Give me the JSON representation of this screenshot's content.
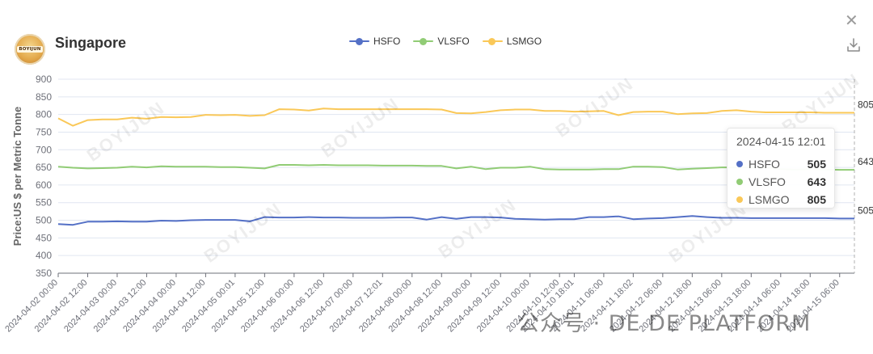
{
  "header": {
    "title": "Singapore",
    "logo_text": "BOYIJUN"
  },
  "watermark_text": "BOYIJUN",
  "footer_watermark": "公众号 · DE DE PLATFORM",
  "tooltip": {
    "date": "2024-04-15 12:01",
    "rows": [
      {
        "name": "HSFO",
        "value": "505",
        "color": "#5470c6"
      },
      {
        "name": "VLSFO",
        "value": "643",
        "color": "#91cc75"
      },
      {
        "name": "LSMGO",
        "value": "805",
        "color": "#fac858"
      }
    ]
  },
  "chart_data": {
    "type": "line",
    "ylabel": "Price:US $ per Metric Tonne",
    "ylim": [
      350,
      900
    ],
    "yticks": [
      350,
      400,
      450,
      500,
      550,
      600,
      650,
      700,
      750,
      800,
      850,
      900
    ],
    "grid": true,
    "legend_position": "top-center",
    "end_labels": [
      "505",
      "643",
      "805"
    ],
    "x": [
      "2024-04-02 00:00",
      "2024-04-02 06:00",
      "2024-04-02 12:00",
      "2024-04-02 18:00",
      "2024-04-03 00:00",
      "2024-04-03 06:00",
      "2024-04-03 12:00",
      "2024-04-03 18:00",
      "2024-04-04 00:00",
      "2024-04-04 06:00",
      "2024-04-04 12:00",
      "2024-04-04 18:00",
      "2024-04-05 00:01",
      "2024-04-05 06:00",
      "2024-04-05 12:00",
      "2024-04-05 18:00",
      "2024-04-06 00:00",
      "2024-04-06 06:00",
      "2024-04-06 12:00",
      "2024-04-06 18:00",
      "2024-04-07 00:00",
      "2024-04-07 06:00",
      "2024-04-07 12:01",
      "2024-04-07 18:00",
      "2024-04-08 00:00",
      "2024-04-08 06:00",
      "2024-04-08 12:00",
      "2024-04-08 18:00",
      "2024-04-09 00:00",
      "2024-04-09 06:00",
      "2024-04-09 12:00",
      "2024-04-09 18:00",
      "2024-04-10 00:00",
      "2024-04-10 06:00",
      "2024-04-10 12:00",
      "2024-04-10 18:01",
      "2024-04-11 00:00",
      "2024-04-11 06:00",
      "2024-04-11 12:00",
      "2024-04-11 18:02",
      "2024-04-12 00:00",
      "2024-04-12 06:00",
      "2024-04-12 12:00",
      "2024-04-12 18:00",
      "2024-04-13 00:00",
      "2024-04-13 06:00",
      "2024-04-13 12:00",
      "2024-04-13 18:00",
      "2024-04-14 00:00",
      "2024-04-14 06:00",
      "2024-04-14 12:00",
      "2024-04-14 18:00",
      "2024-04-15 00:00",
      "2024-04-15 06:00",
      "2024-04-15 12:01"
    ],
    "xtick_labels": [
      "2024-04-02 00:00",
      "2024-04-02 12:00",
      "2024-04-03 00:00",
      "2024-04-03 12:00",
      "2024-04-04 00:00",
      "2024-04-04 12:00",
      "2024-04-05 00:01",
      "2024-04-05 12:00",
      "2024-04-06 00:00",
      "2024-04-06 12:00",
      "2024-04-07 00:00",
      "2024-04-07 12:01",
      "2024-04-08 00:00",
      "2024-04-08 12:00",
      "2024-04-09 00:00",
      "2024-04-09 12:00",
      "2024-04-10 00:00",
      "2024-04-10 12:00",
      "2024-04-10 18:01",
      "2024-04-11 06:00",
      "2024-04-11 18:02",
      "2024-04-12 06:00",
      "2024-04-12 18:00",
      "2024-04-13 06:00",
      "2024-04-13 18:00",
      "2024-04-14 06:00",
      "2024-04-14 18:00",
      "2024-04-15 06:00"
    ],
    "series": [
      {
        "name": "HSFO",
        "color": "#5470c6",
        "values": [
          489,
          487,
          496,
          496,
          497,
          496,
          496,
          499,
          498,
          500,
          501,
          501,
          501,
          497,
          509,
          508,
          508,
          509,
          508,
          508,
          507,
          507,
          507,
          508,
          508,
          502,
          509,
          504,
          509,
          509,
          508,
          504,
          503,
          502,
          503,
          503,
          509,
          509,
          511,
          503,
          505,
          506,
          509,
          512,
          509,
          507,
          507,
          506,
          506,
          506,
          506,
          506,
          506,
          505,
          505
        ]
      },
      {
        "name": "VLSFO",
        "color": "#91cc75",
        "values": [
          652,
          649,
          647,
          648,
          649,
          652,
          650,
          653,
          652,
          652,
          652,
          651,
          651,
          649,
          647,
          657,
          657,
          656,
          657,
          656,
          656,
          656,
          655,
          655,
          655,
          654,
          654,
          647,
          652,
          645,
          649,
          649,
          652,
          645,
          644,
          644,
          644,
          645,
          645,
          652,
          652,
          651,
          644,
          646,
          648,
          650,
          650,
          650,
          650,
          645,
          644,
          645,
          644,
          643,
          643
        ]
      },
      {
        "name": "LSMGO",
        "color": "#fac858",
        "values": [
          789,
          768,
          784,
          786,
          786,
          791,
          788,
          793,
          792,
          793,
          799,
          798,
          799,
          796,
          798,
          815,
          814,
          811,
          817,
          815,
          815,
          815,
          815,
          815,
          815,
          815,
          814,
          804,
          803,
          807,
          812,
          814,
          814,
          810,
          810,
          808,
          809,
          810,
          798,
          807,
          808,
          808,
          801,
          803,
          804,
          810,
          812,
          808,
          806,
          806,
          806,
          806,
          805,
          805,
          805
        ]
      }
    ]
  }
}
